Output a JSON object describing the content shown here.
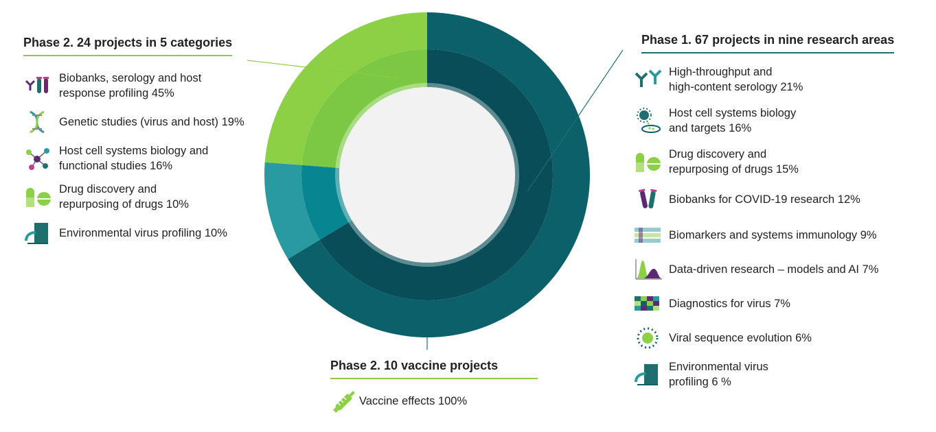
{
  "colors": {
    "phase1_outer": "#0b6069",
    "phase1_inner": "#084d57",
    "vaccine_outer": "#2a9aa1",
    "vaccine_inner": "#078590",
    "phase2_outer": "#8cd046",
    "phase2_inner": "#7cc743",
    "center": "#f2f2f2",
    "rule_green": "#8dcc3f",
    "rule_teal": "#1f6f6f"
  },
  "chart_data": {
    "type": "pie",
    "variant": "donut",
    "series": [
      {
        "name": "Phase 1. 67 projects in nine research areas",
        "value": 67
      },
      {
        "name": "Phase 2. 10 vaccine projects",
        "value": 10
      },
      {
        "name": "Phase 2. 24 projects in 5 categories",
        "value": 24
      }
    ],
    "groups": [
      {
        "title": "Phase 2. 24 projects in 5 categories",
        "items": [
          {
            "label": "Biobanks, serology and host response profiling 45%",
            "value": 45,
            "icon": "antibody-tubes-icon"
          },
          {
            "label": "Genetic studies (virus and host) 19%",
            "value": 19,
            "icon": "dna-icon"
          },
          {
            "label": "Host cell systems biology and functional studies 16%",
            "value": 16,
            "icon": "network-icon"
          },
          {
            "label": "Drug discovery and repurposing of drugs 10%",
            "value": 10,
            "icon": "pill-icon"
          },
          {
            "label": "Environmental virus profiling 10%",
            "value": 10,
            "icon": "sewage-pipe-icon"
          }
        ]
      },
      {
        "title": "Phase 1. 67 projects in nine research areas",
        "items": [
          {
            "label": "High-throughput and high-content serology 21%",
            "value": 21,
            "icon": "antibody-icon"
          },
          {
            "label": "Host cell systems biology and targets 16%",
            "value": 16,
            "icon": "virus-petri-icon"
          },
          {
            "label": "Drug discovery and repurposing of drugs 15%",
            "value": 15,
            "icon": "pill-icon"
          },
          {
            "label": "Biobanks for COVID-19 research 12%",
            "value": 12,
            "icon": "test-tubes-icon"
          },
          {
            "label": "Biomarkers and systems immunology 9%",
            "value": 9,
            "icon": "sequence-grid-icon"
          },
          {
            "label": "Data-driven research – models and AI 7%",
            "value": 7,
            "icon": "density-plot-icon"
          },
          {
            "label": "Diagnostics for virus 7%",
            "value": 7,
            "icon": "heatmap-icon"
          },
          {
            "label": "Viral sequence  evolution 6%",
            "value": 6,
            "icon": "virus-dots-icon"
          },
          {
            "label": "Environmental virus profiling 6 %",
            "value": 6,
            "icon": "sewage-pipe-icon"
          }
        ]
      },
      {
        "title": "Phase 2. 10 vaccine projects",
        "items": [
          {
            "label": "Vaccine effects 100%",
            "value": 100,
            "icon": "syringe-icon"
          }
        ]
      }
    ]
  },
  "texts": {
    "p2_title": "Phase 2. 24 projects in 5 categories",
    "p2_items": [
      [
        "Biobanks, serology and host",
        "response profiling 45%"
      ],
      [
        "Genetic studies (virus and host) 19%"
      ],
      [
        "Host cell systems biology and",
        "functional studies 16%"
      ],
      [
        "Drug discovery and",
        "repurposing of drugs 10%"
      ],
      [
        "Environmental virus profiling 10%"
      ]
    ],
    "p1_title": "Phase 1. 67 projects in nine research areas",
    "p1_items": [
      [
        "High-throughput and",
        "high-content serology 21%"
      ],
      [
        "Host cell systems biology",
        "and targets 16%"
      ],
      [
        "Drug discovery and",
        "repurposing of drugs 15%"
      ],
      [
        "Biobanks for COVID-19 research 12%"
      ],
      [
        "Biomarkers and systems immunology 9%"
      ],
      [
        "Data-driven research – models and AI 7%"
      ],
      [
        "Diagnostics for virus 7%"
      ],
      [
        "Viral sequence  evolution 6%"
      ],
      [
        "Environmental virus",
        "profiling 6 %"
      ]
    ],
    "vac_title": "Phase 2. 10 vaccine projects",
    "vac_items": [
      [
        "Vaccine effects 100%"
      ]
    ]
  }
}
